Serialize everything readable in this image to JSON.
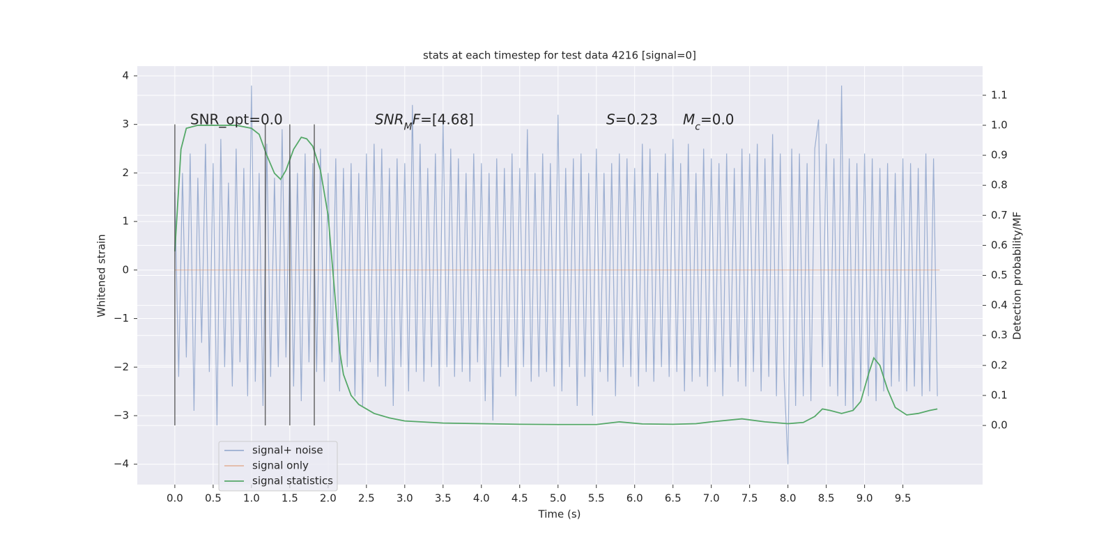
{
  "chart_data": {
    "type": "line",
    "title": "stats at each timestep for test data 4216 [signal=0]",
    "xlabel": "Time (s)",
    "ylabel": "Whitened strain",
    "y2label": "Detection probability/MF",
    "xlim": [
      -0.49,
      10.54
    ],
    "ylim": [
      -4.42,
      4.2
    ],
    "y2lim": [
      -0.197,
      1.197
    ],
    "xticks": [
      {
        "value": 0,
        "label": "0.0"
      },
      {
        "value": 0.5,
        "label": "0.5"
      },
      {
        "value": 1,
        "label": "1.0"
      },
      {
        "value": 1.5,
        "label": "1.5"
      },
      {
        "value": 2,
        "label": "2.0"
      },
      {
        "value": 2.5,
        "label": "2.5"
      },
      {
        "value": 3,
        "label": "3.0"
      },
      {
        "value": 3.5,
        "label": "3.5"
      },
      {
        "value": 4,
        "label": "4.0"
      },
      {
        "value": 4.5,
        "label": "4.5"
      },
      {
        "value": 5,
        "label": "5.0"
      },
      {
        "value": 5.5,
        "label": "5.5"
      },
      {
        "value": 6,
        "label": "6.0"
      },
      {
        "value": 6.5,
        "label": "6.5"
      },
      {
        "value": 7,
        "label": "7.0"
      },
      {
        "value": 7.5,
        "label": "7.5"
      },
      {
        "value": 8,
        "label": "8.0"
      },
      {
        "value": 8.5,
        "label": "8.5"
      },
      {
        "value": 9,
        "label": "9.0"
      },
      {
        "value": 9.5,
        "label": "9.5"
      }
    ],
    "yticks": [
      {
        "value": -4,
        "label": "−4"
      },
      {
        "value": -3,
        "label": "−3"
      },
      {
        "value": -2,
        "label": "−2"
      },
      {
        "value": -1,
        "label": "−1"
      },
      0,
      1,
      2,
      3,
      4
    ],
    "y2ticks": [
      {
        "value": 0,
        "label": "0.0"
      },
      {
        "value": 0.1,
        "label": "0.1"
      },
      {
        "value": 0.2,
        "label": "0.2"
      },
      {
        "value": 0.3,
        "label": "0.3"
      },
      {
        "value": 0.4,
        "label": "0.4"
      },
      {
        "value": 0.5,
        "label": "0.5"
      },
      {
        "value": 0.6,
        "label": "0.6"
      },
      {
        "value": 0.7,
        "label": "0.7"
      },
      {
        "value": 0.8,
        "label": "0.8"
      },
      {
        "value": 0.9,
        "label": "0.9"
      },
      {
        "value": 1,
        "label": "1.0"
      },
      {
        "value": 1.1,
        "label": "1.1"
      }
    ],
    "grid": true,
    "legend": "lower left",
    "series": [
      {
        "name": "signal+ noise",
        "color": "#4c72b0",
        "alpha": 0.5,
        "x": [
          0,
          0.05,
          0.1,
          0.15,
          0.2,
          0.25,
          0.3,
          0.35,
          0.4,
          0.45,
          0.5,
          0.55,
          0.6,
          0.65,
          0.7,
          0.75,
          0.8,
          0.85,
          0.9,
          0.95,
          1,
          1.05,
          1.1,
          1.15,
          1.2,
          1.25,
          1.3,
          1.35,
          1.4,
          1.45,
          1.5,
          1.55,
          1.6,
          1.65,
          1.7,
          1.75,
          1.8,
          1.85,
          1.9,
          1.95,
          2,
          2.05,
          2.1,
          2.15,
          2.2,
          2.25,
          2.3,
          2.35,
          2.4,
          2.45,
          2.5,
          2.55,
          2.6,
          2.65,
          2.7,
          2.75,
          2.8,
          2.85,
          2.9,
          2.95,
          3,
          3.05,
          3.1,
          3.15,
          3.2,
          3.25,
          3.3,
          3.35,
          3.4,
          3.45,
          3.5,
          3.55,
          3.6,
          3.65,
          3.7,
          3.75,
          3.8,
          3.85,
          3.9,
          3.95,
          4,
          4.05,
          4.1,
          4.15,
          4.2,
          4.25,
          4.3,
          4.35,
          4.4,
          4.45,
          4.5,
          4.55,
          4.6,
          4.65,
          4.7,
          4.75,
          4.8,
          4.85,
          4.9,
          4.95,
          5,
          5.05,
          5.1,
          5.15,
          5.2,
          5.25,
          5.3,
          5.35,
          5.4,
          5.45,
          5.5,
          5.55,
          5.6,
          5.65,
          5.7,
          5.75,
          5.8,
          5.85,
          5.9,
          5.95,
          6,
          6.05,
          6.1,
          6.15,
          6.2,
          6.25,
          6.3,
          6.35,
          6.4,
          6.45,
          6.5,
          6.55,
          6.6,
          6.65,
          6.7,
          6.75,
          6.8,
          6.85,
          6.9,
          6.95,
          7,
          7.05,
          7.1,
          7.15,
          7.2,
          7.25,
          7.3,
          7.35,
          7.4,
          7.45,
          7.5,
          7.55,
          7.6,
          7.65,
          7.7,
          7.75,
          7.8,
          7.85,
          7.9,
          7.95,
          8,
          8.05,
          8.1,
          8.15,
          8.2,
          8.25,
          8.3,
          8.35,
          8.4,
          8.45,
          8.5,
          8.55,
          8.6,
          8.65,
          8.7,
          8.75,
          8.8,
          8.85,
          8.9,
          8.95,
          9,
          9.05,
          9.1,
          9.15,
          9.2,
          9.25,
          9.3,
          9.35,
          9.4,
          9.45,
          9.5,
          9.55,
          9.6,
          9.65,
          9.7,
          9.75,
          9.8,
          9.85,
          9.9,
          9.95
        ],
        "values": [
          1.6,
          -2.2,
          2.0,
          -1.8,
          2.4,
          -2.9,
          1.9,
          -1.5,
          2.6,
          -2.1,
          2.2,
          -3.2,
          2.7,
          -2.0,
          1.8,
          -2.4,
          2.5,
          -1.9,
          2.1,
          -2.6,
          3.8,
          -2.3,
          2.0,
          -2.8,
          2.6,
          -2.2,
          1.9,
          -2.0,
          2.9,
          -1.8,
          2.3,
          -2.4,
          2.0,
          -2.7,
          2.4,
          -1.9,
          2.2,
          -2.1,
          2.5,
          -2.3,
          2.0,
          -1.9,
          2.3,
          -2.5,
          2.1,
          -2.0,
          2.2,
          -2.6,
          2.0,
          -2.8,
          2.4,
          -1.9,
          2.6,
          -2.2,
          2.5,
          -2.4,
          2.1,
          -2.8,
          2.3,
          -2.0,
          2.2,
          -2.5,
          3.4,
          -2.1,
          2.6,
          -2.3,
          2.1,
          -2.0,
          2.4,
          -2.4,
          3.1,
          -2.0,
          2.5,
          -2.2,
          2.3,
          -2.1,
          2.0,
          -2.3,
          2.4,
          -1.9,
          2.2,
          -2.7,
          2.0,
          -3.1,
          2.3,
          -2.2,
          2.1,
          -2.0,
          2.4,
          -2.6,
          2.1,
          -2.0,
          2.9,
          -2.3,
          2.0,
          -2.2,
          2.4,
          -2.1,
          2.2,
          -2.4,
          3.2,
          -2.5,
          2.1,
          -2.0,
          2.3,
          -2.8,
          2.4,
          -2.2,
          2.0,
          -3.0,
          2.5,
          -2.1,
          2.0,
          -2.3,
          2.2,
          -2.6,
          2.4,
          -2.0,
          2.3,
          -2.2,
          2.1,
          -2.4,
          2.6,
          -2.1,
          2.5,
          -2.3,
          2.0,
          -2.0,
          2.4,
          -2.2,
          2.7,
          -2.1,
          2.2,
          -2.5,
          2.6,
          -2.3,
          2.0,
          -2.2,
          2.5,
          -2.4,
          2.3,
          -2.1,
          2.2,
          -2.6,
          2.4,
          -2.0,
          2.1,
          -2.3,
          2.5,
          -2.4,
          2.4,
          -2.1,
          2.6,
          -2.5,
          2.3,
          -2.2,
          2.8,
          -2.6,
          2.4,
          -2.2,
          -4.0,
          2.5,
          -2.8,
          2.4,
          -2.6,
          2.2,
          -2.7,
          2.5,
          3.1,
          -2.0,
          2.6,
          -2.4,
          2.3,
          -2.6,
          3.8,
          -2.8,
          2.3,
          -2.9,
          2.2,
          -2.5,
          2.4,
          -2.6,
          2.3,
          -2.7,
          2.1,
          -2.5,
          2.2,
          -2.4,
          2.0,
          -2.3,
          2.3,
          -2.5,
          2.2,
          -2.4,
          2.1,
          -2.6,
          2.4,
          -2.5,
          2.3,
          -2.6
        ]
      },
      {
        "name": "signal only",
        "color": "#dd8452",
        "alpha": 0.5,
        "x": [
          0,
          9.98
        ],
        "values": [
          0,
          0
        ]
      },
      {
        "name": "signal statistics",
        "color": "#55a868",
        "alpha": 1,
        "axis": "y2",
        "x": [
          0,
          0.08,
          0.15,
          0.3,
          0.5,
          0.8,
          1.0,
          1.1,
          1.2,
          1.3,
          1.38,
          1.45,
          1.55,
          1.65,
          1.72,
          1.8,
          1.9,
          2.0,
          2.1,
          2.15,
          2.2,
          2.3,
          2.4,
          2.6,
          2.8,
          3.0,
          3.5,
          4.0,
          4.5,
          5.0,
          5.5,
          5.8,
          6.1,
          6.5,
          6.8,
          7.0,
          7.4,
          7.7,
          8.0,
          8.2,
          8.35,
          8.45,
          8.55,
          8.7,
          8.85,
          8.95,
          9.05,
          9.12,
          9.2,
          9.3,
          9.4,
          9.55,
          9.7,
          9.85,
          9.95
        ],
        "values": [
          0.58,
          0.92,
          0.99,
          1.0,
          1.0,
          1.0,
          0.99,
          0.97,
          0.9,
          0.84,
          0.82,
          0.85,
          0.92,
          0.96,
          0.955,
          0.93,
          0.85,
          0.7,
          0.4,
          0.25,
          0.17,
          0.1,
          0.07,
          0.04,
          0.025,
          0.015,
          0.008,
          0.006,
          0.004,
          0.003,
          0.003,
          0.012,
          0.005,
          0.004,
          0.006,
          0.012,
          0.022,
          0.012,
          0.006,
          0.01,
          0.03,
          0.055,
          0.05,
          0.04,
          0.05,
          0.08,
          0.17,
          0.225,
          0.2,
          0.12,
          0.06,
          0.035,
          0.04,
          0.05,
          0.055
        ]
      }
    ],
    "vlines": {
      "x": [
        0,
        1.18,
        1.5,
        1.82
      ],
      "ymin": -3.2,
      "ymax": 3.0,
      "color": "#444444"
    },
    "annotations": [
      {
        "x": 0.2,
        "y": 3.0,
        "parts": [
          {
            "text": "SNR_opt=0.0"
          }
        ]
      },
      {
        "x": 2.61,
        "y": 3.0,
        "parts": [
          {
            "text": "SNR",
            "style": "italic"
          },
          {
            "text": "M",
            "style": "sub"
          },
          {
            "text": "F",
            "style": "italic"
          },
          {
            "text": "=[4.68]"
          }
        ]
      },
      {
        "x": 5.63,
        "y": 3.0,
        "parts": [
          {
            "text": "S",
            "style": "italic"
          },
          {
            "text": "=0.23"
          }
        ]
      },
      {
        "x": 6.63,
        "y": 3.0,
        "parts": [
          {
            "text": "M",
            "style": "italic"
          },
          {
            "text": "c",
            "style": "sub"
          },
          {
            "text": "=0.0"
          }
        ]
      }
    ]
  }
}
